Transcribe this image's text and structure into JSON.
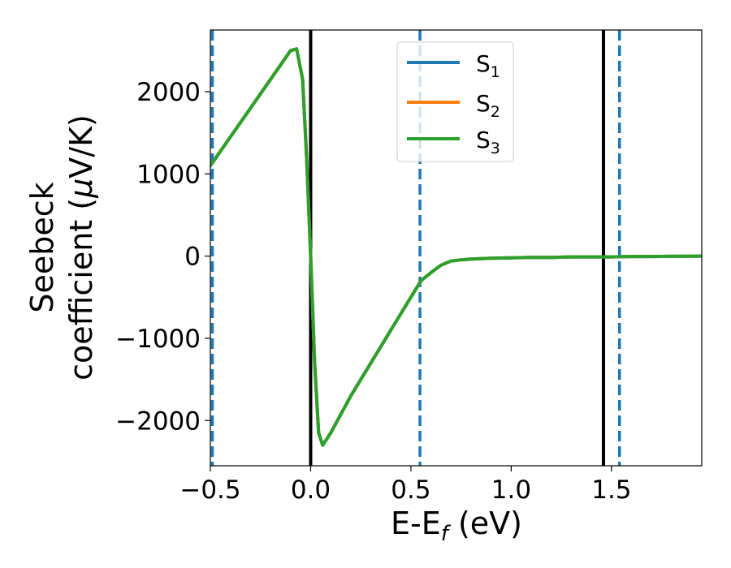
{
  "chart_data": {
    "type": "line",
    "title": "",
    "xlabel": "E-E$_f$ (eV)",
    "xlabel_parts": {
      "main": "E-E",
      "sub": "f",
      "rest": " (eV)"
    },
    "ylabel_line1": "Seebeck",
    "ylabel_line2_pre": "coefficient  (",
    "ylabel_mu": "μ",
    "ylabel_line2_post": "V/K)",
    "xlim": [
      -0.5,
      1.95
    ],
    "ylim": [
      -2550,
      2750
    ],
    "x_ticks": [
      -0.5,
      0.0,
      0.5,
      1.0,
      1.5
    ],
    "x_tick_labels": [
      "−0.5",
      "0.0",
      "0.5",
      "1.0",
      "1.5"
    ],
    "y_ticks": [
      2000,
      1000,
      0,
      -1000,
      -2000
    ],
    "y_tick_labels": [
      "2000",
      "1000",
      "0",
      "−1000",
      "−2000"
    ],
    "grid": false,
    "legend_position": "top-center",
    "series": [
      {
        "name": "S1",
        "label_main": "S",
        "label_sub": "1",
        "color": "#1f77b4",
        "x": [
          -0.5,
          -0.4,
          -0.3,
          -0.2,
          -0.1,
          -0.07,
          -0.04,
          -0.02,
          0.0,
          0.02,
          0.04,
          0.06,
          0.1,
          0.2,
          0.3,
          0.4,
          0.5,
          0.55,
          0.6,
          0.65,
          0.7,
          0.75,
          0.8,
          0.9,
          1.0,
          1.1,
          1.2,
          1.3,
          1.4,
          1.5,
          1.6,
          1.7,
          1.8,
          1.9,
          1.95
        ],
        "y": [
          1100,
          1450,
          1800,
          2150,
          2500,
          2520,
          2150,
          1200,
          0,
          -1300,
          -2150,
          -2300,
          -2150,
          -1700,
          -1300,
          -900,
          -500,
          -300,
          -200,
          -110,
          -60,
          -45,
          -35,
          -25,
          -20,
          -15,
          -15,
          -10,
          -10,
          -10,
          -5,
          -5,
          -3,
          -2,
          0
        ]
      },
      {
        "name": "S2",
        "label_main": "S",
        "label_sub": "2",
        "color": "#ff7f0e",
        "x": [
          -0.5,
          -0.4,
          -0.3,
          -0.2,
          -0.1,
          -0.07,
          -0.04,
          -0.02,
          0.0,
          0.02,
          0.04,
          0.06,
          0.1,
          0.2,
          0.3,
          0.4,
          0.5,
          0.55,
          0.6,
          0.65,
          0.7,
          0.75,
          0.8,
          0.9,
          1.0,
          1.1,
          1.2,
          1.3,
          1.4,
          1.5,
          1.6,
          1.7,
          1.8,
          1.9,
          1.95
        ],
        "y": [
          1100,
          1450,
          1800,
          2150,
          2500,
          2520,
          2150,
          1200,
          0,
          -1300,
          -2150,
          -2300,
          -2150,
          -1700,
          -1300,
          -900,
          -500,
          -300,
          -200,
          -110,
          -60,
          -45,
          -35,
          -25,
          -20,
          -15,
          -15,
          -10,
          -10,
          -10,
          -5,
          -5,
          -3,
          -2,
          0
        ]
      },
      {
        "name": "S3",
        "label_main": "S",
        "label_sub": "3",
        "color": "#2ca02c",
        "x": [
          -0.5,
          -0.4,
          -0.3,
          -0.2,
          -0.1,
          -0.07,
          -0.04,
          -0.02,
          0.0,
          0.02,
          0.04,
          0.06,
          0.1,
          0.2,
          0.3,
          0.4,
          0.5,
          0.55,
          0.6,
          0.65,
          0.7,
          0.75,
          0.8,
          0.9,
          1.0,
          1.1,
          1.2,
          1.3,
          1.4,
          1.5,
          1.6,
          1.7,
          1.8,
          1.9,
          1.95
        ],
        "y": [
          1100,
          1450,
          1800,
          2150,
          2500,
          2520,
          2150,
          1200,
          0,
          -1300,
          -2150,
          -2300,
          -2150,
          -1700,
          -1300,
          -900,
          -500,
          -300,
          -200,
          -110,
          -60,
          -45,
          -35,
          -25,
          -20,
          -15,
          -15,
          -10,
          -10,
          -10,
          -5,
          -5,
          -3,
          -2,
          0
        ]
      }
    ],
    "vertical_lines": [
      {
        "x": 0.0,
        "style": "solid",
        "color": "#000000"
      },
      {
        "x": 1.46,
        "style": "solid",
        "color": "#000000"
      },
      {
        "x": -0.49,
        "style": "dashed",
        "color": "#1f77b4"
      },
      {
        "x": 0.545,
        "style": "dashed",
        "color": "#1f77b4"
      },
      {
        "x": 1.54,
        "style": "dashed",
        "color": "#1f77b4"
      }
    ]
  }
}
